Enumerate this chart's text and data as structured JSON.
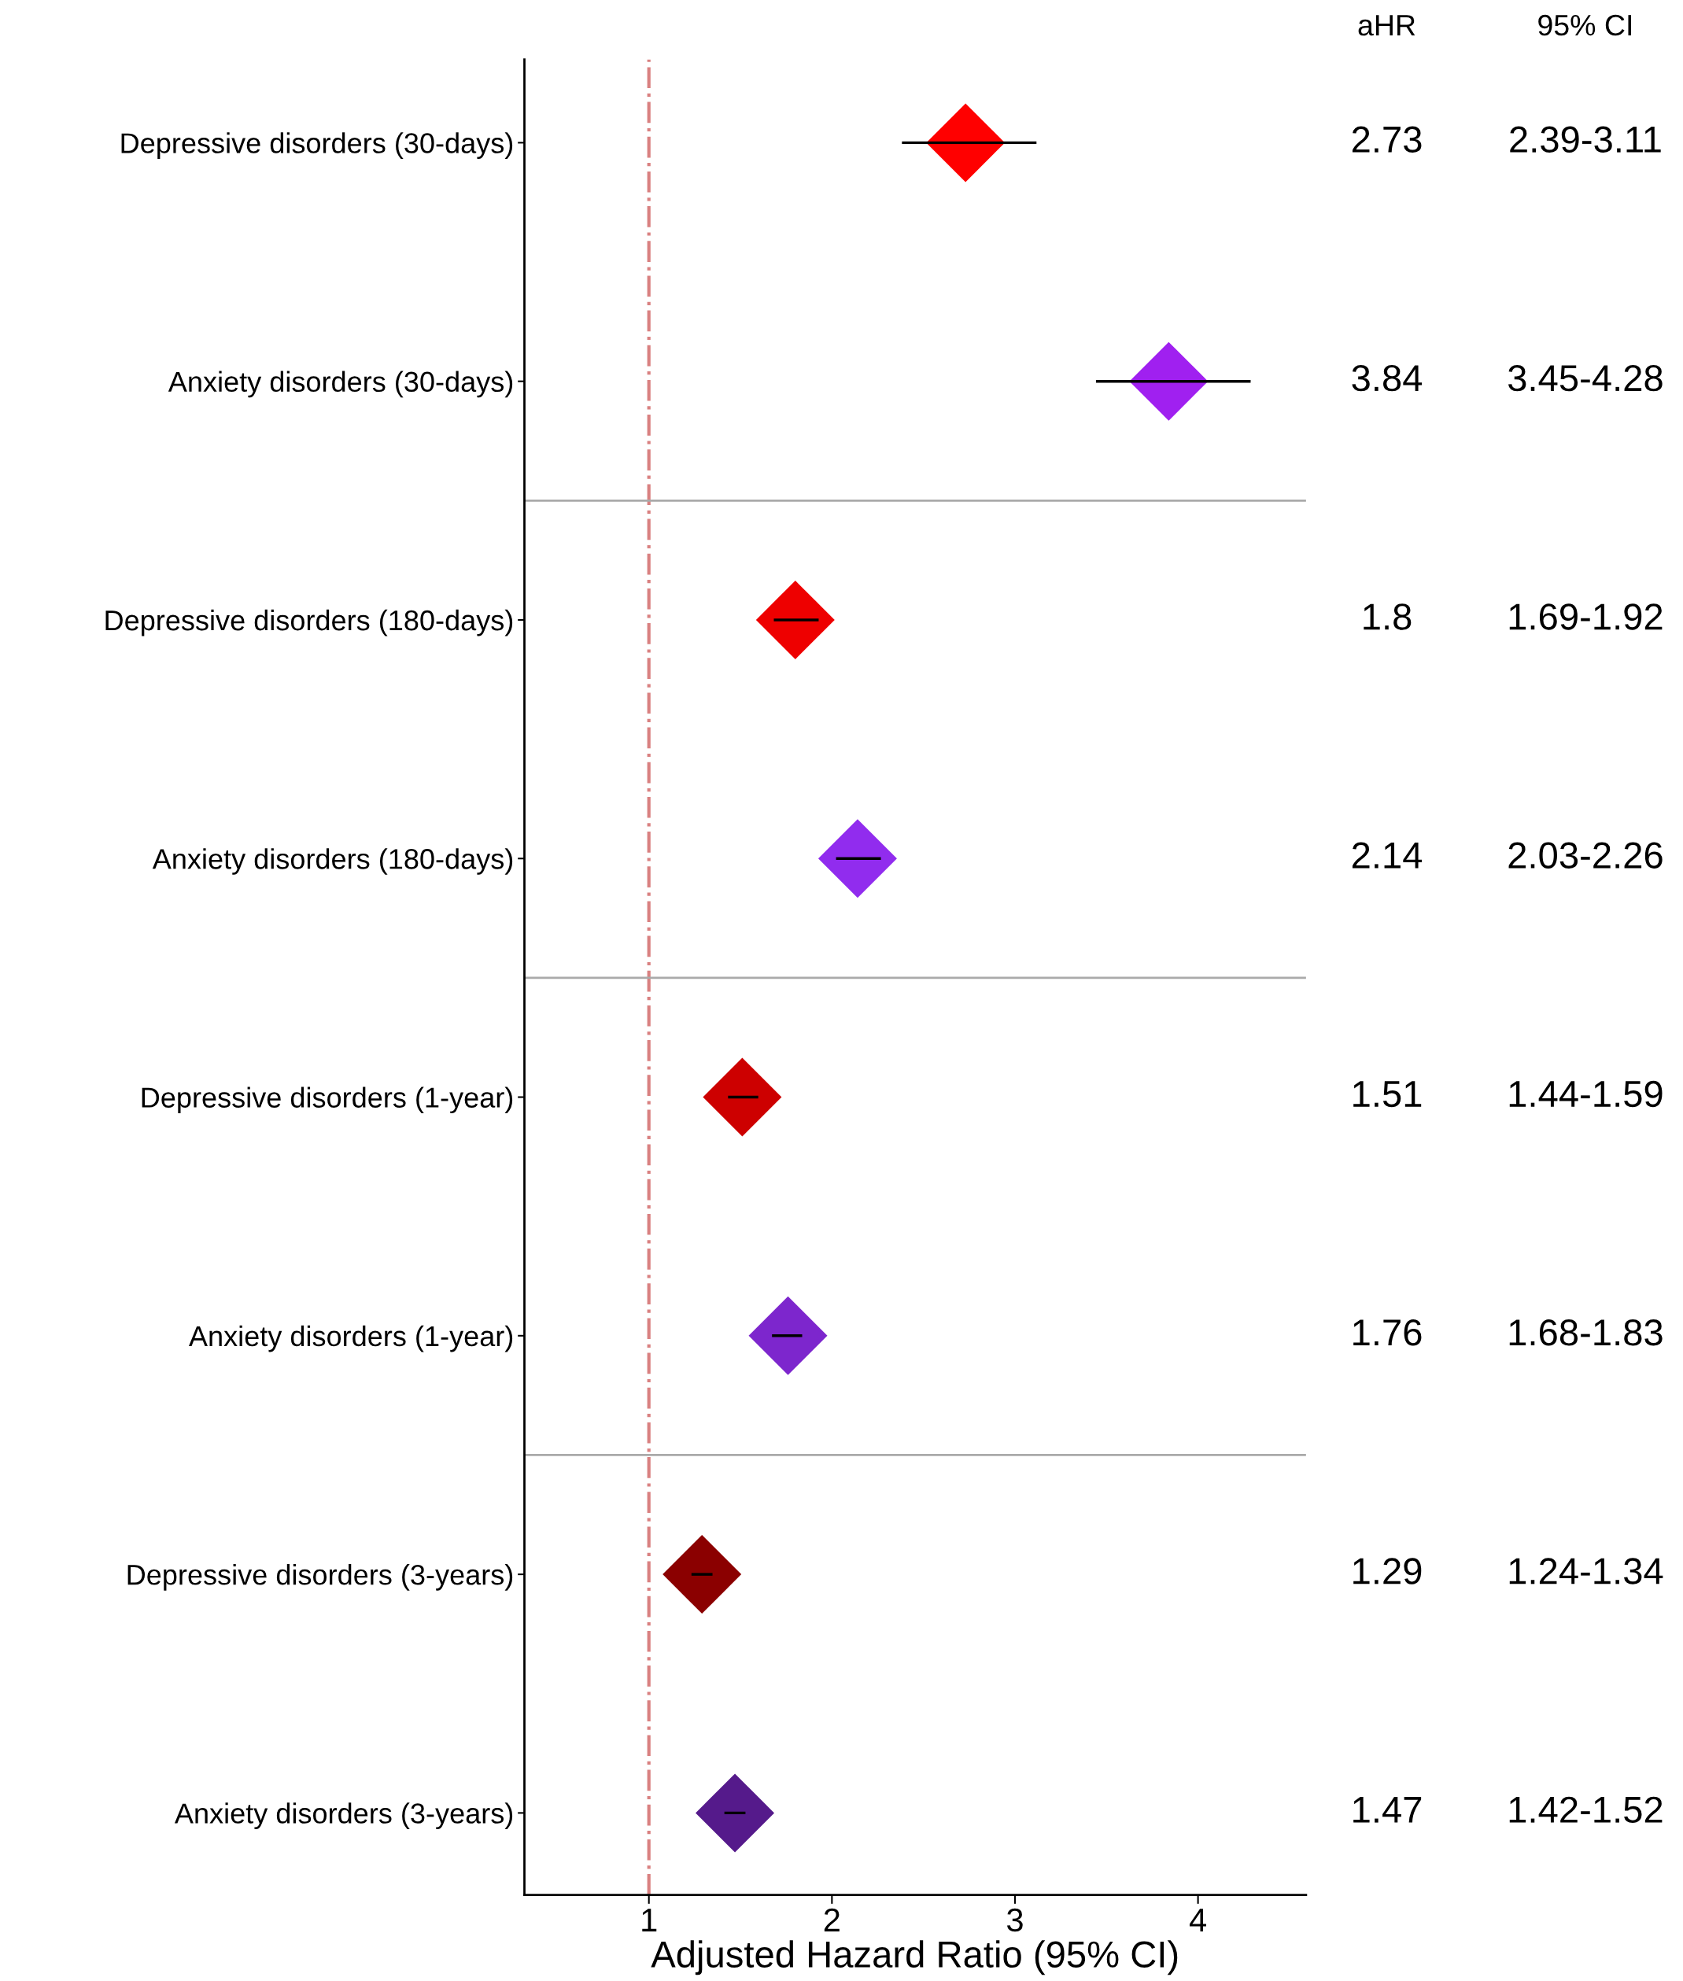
{
  "chart_data": {
    "type": "scatter",
    "orientation": "horizontal",
    "xlabel": "Adjusted Hazard Ratio (95% CI)",
    "categories": [
      "Depressive disorders (30-days)",
      "Anxiety disorders (30-days)",
      "Depressive disorders (180-days)",
      "Anxiety disorders (180-days)",
      "Depressive disorders (1-year)",
      "Anxiety disorders (1-year)",
      "Depressive disorders (3-years)",
      "Anxiety disorders (3-years)"
    ],
    "values": [
      2.73,
      3.84,
      1.8,
      2.14,
      1.51,
      1.76,
      1.29,
      1.47
    ],
    "errors": [
      [
        2.39,
        3.11
      ],
      [
        3.45,
        4.28
      ],
      [
        1.69,
        1.92
      ],
      [
        2.03,
        2.26
      ],
      [
        1.44,
        1.59
      ],
      [
        1.68,
        1.83
      ],
      [
        1.24,
        1.34
      ],
      [
        1.42,
        1.52
      ]
    ],
    "value_labels": [
      "2.73",
      "3.84",
      "1.8",
      "2.14",
      "1.51",
      "1.76",
      "1.29",
      "1.47"
    ],
    "colors": [
      "#ff0000",
      "#a020f0",
      "#ee0000",
      "#912cee",
      "#cd0000",
      "#7d26cd",
      "#8b0000",
      "#551a8b"
    ],
    "marker": "diamond",
    "xlim": [
      0.32,
      4.59
    ],
    "xticks": [
      1,
      2,
      3,
      4
    ],
    "ref_lines": [
      {
        "axis": "x",
        "value": 1,
        "color": "#d98080",
        "line_style": "dashdot"
      }
    ],
    "annotations": [
      "aHR",
      "95% CI",
      "2.39-3.11",
      "3.45-4.28",
      "1.69-1.92",
      "2.03-2.26",
      "1.44-1.59",
      "1.68-1.83",
      "1.24-1.34",
      "1.42-1.52"
    ]
  }
}
